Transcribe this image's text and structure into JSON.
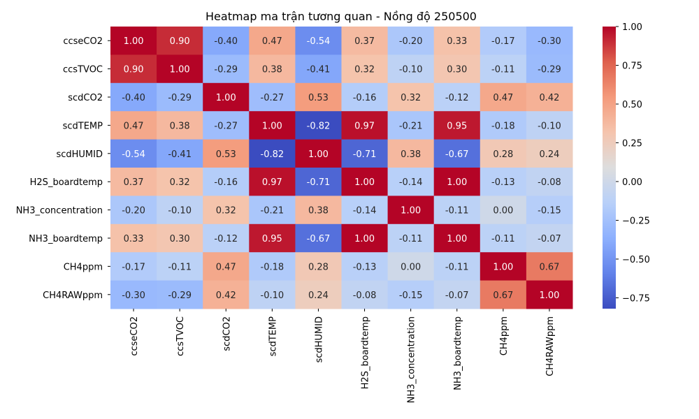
{
  "chart_data": {
    "type": "heatmap",
    "title": "Heatmap ma trận tương quan - Nồng độ 250500",
    "rows": [
      "ccseCO2",
      "ccsTVOC",
      "scdCO2",
      "scdTEMP",
      "scdHUMID",
      "H2S_boardtemp",
      "NH3_concentration",
      "NH3_boardtemp",
      "CH4ppm",
      "CH4RAWppm"
    ],
    "columns": [
      "ccseCO2",
      "ccsTVOC",
      "scdCO2",
      "scdTEMP",
      "scdHUMID",
      "H2S_boardtemp",
      "NH3_concentration",
      "NH3_boardtemp",
      "CH4ppm",
      "CH4RAWppm"
    ],
    "values": [
      [
        1.0,
        0.9,
        -0.4,
        0.47,
        -0.54,
        0.37,
        -0.2,
        0.33,
        -0.17,
        -0.3
      ],
      [
        0.9,
        1.0,
        -0.29,
        0.38,
        -0.41,
        0.32,
        -0.1,
        0.3,
        -0.11,
        -0.29
      ],
      [
        -0.4,
        -0.29,
        1.0,
        -0.27,
        0.53,
        -0.16,
        0.32,
        -0.12,
        0.47,
        0.42
      ],
      [
        0.47,
        0.38,
        -0.27,
        1.0,
        -0.82,
        0.97,
        -0.21,
        0.95,
        -0.18,
        -0.1
      ],
      [
        -0.54,
        -0.41,
        0.53,
        -0.82,
        1.0,
        -0.71,
        0.38,
        -0.67,
        0.28,
        0.24
      ],
      [
        0.37,
        0.32,
        -0.16,
        0.97,
        -0.71,
        1.0,
        -0.14,
        1.0,
        -0.13,
        -0.08
      ],
      [
        -0.2,
        -0.1,
        0.32,
        -0.21,
        0.38,
        -0.14,
        1.0,
        -0.11,
        -0.0,
        -0.15
      ],
      [
        0.33,
        0.3,
        -0.12,
        0.95,
        -0.67,
        1.0,
        -0.11,
        1.0,
        -0.11,
        -0.07
      ],
      [
        -0.17,
        -0.11,
        0.47,
        -0.18,
        0.28,
        -0.13,
        -0.0,
        -0.11,
        1.0,
        0.67
      ],
      [
        -0.3,
        -0.29,
        0.42,
        -0.1,
        0.24,
        -0.08,
        -0.15,
        -0.07,
        0.67,
        1.0
      ]
    ],
    "value_format": "2 decimals",
    "colormap": "coolwarm",
    "vmin": -0.82,
    "vmax": 1.0,
    "colorbar_ticks": [
      "1.00",
      "0.75",
      "0.50",
      "0.25",
      "0.00",
      "−0.25",
      "−0.50",
      "−0.75"
    ],
    "colorbar_tick_values": [
      1.0,
      0.75,
      0.5,
      0.25,
      0.0,
      -0.25,
      -0.5,
      -0.75
    ],
    "grid": false,
    "legend": "colorbar-right"
  }
}
